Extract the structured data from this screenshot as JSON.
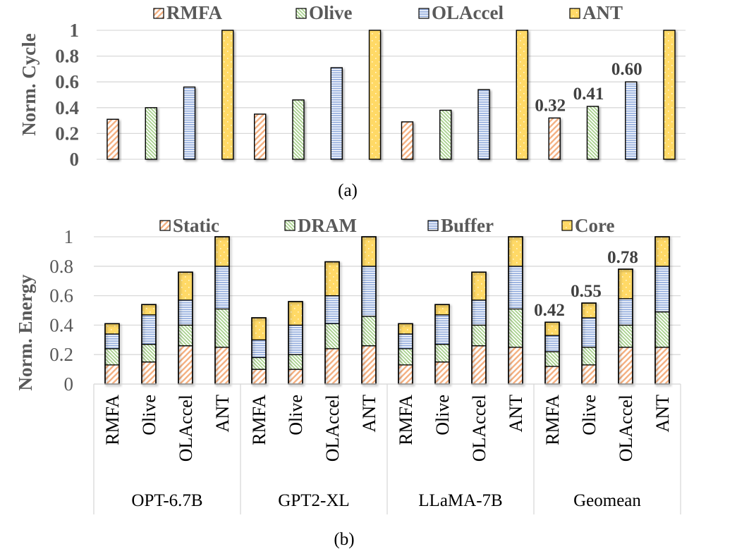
{
  "chart_data": [
    {
      "type": "bar",
      "panel_label": "(a)",
      "ylabel": "Norm. Cycle",
      "xlabel": "",
      "ylim": [
        0,
        1
      ],
      "yticks": [
        "0",
        "0.2",
        "0.4",
        "0.6",
        "0.8",
        "1"
      ],
      "grid": true,
      "legend": {
        "placement": "top",
        "entries": [
          "RMFA",
          "Olive",
          "OLAccel",
          "ANT"
        ]
      },
      "groups": [
        "OPT-6.7B",
        "GPT2-XL",
        "LLaMA-7B",
        "Geomean"
      ],
      "series": [
        {
          "name": "RMFA",
          "values": [
            0.31,
            0.35,
            0.29,
            0.32
          ]
        },
        {
          "name": "Olive",
          "values": [
            0.4,
            0.46,
            0.38,
            0.41
          ]
        },
        {
          "name": "OLAccel",
          "values": [
            0.56,
            0.71,
            0.54,
            0.6
          ]
        },
        {
          "name": "ANT",
          "values": [
            1.0,
            1.0,
            1.0,
            1.0
          ]
        }
      ],
      "annotations": [
        {
          "group": "Geomean",
          "series": "RMFA",
          "text": "0.32"
        },
        {
          "group": "Geomean",
          "series": "Olive",
          "text": "0.41"
        },
        {
          "group": "Geomean",
          "series": "OLAccel",
          "text": "0.60"
        }
      ]
    },
    {
      "type": "bar",
      "stacked": true,
      "panel_label": "(b)",
      "ylabel": "Norm. Energy",
      "xlabel": "",
      "ylim": [
        0,
        1
      ],
      "yticks": [
        "0",
        "0.2",
        "0.4",
        "0.6",
        "0.8",
        "1"
      ],
      "grid": true,
      "legend": {
        "placement": "top",
        "entries": [
          "Static",
          "DRAM",
          "Buffer",
          "Core"
        ]
      },
      "groups": [
        "OPT-6.7B",
        "GPT2-XL",
        "LLaMA-7B",
        "Geomean"
      ],
      "categories": [
        "RMFA",
        "Olive",
        "OLAccel",
        "ANT"
      ],
      "series": [
        {
          "name": "Static",
          "values": [
            [
              0.13,
              0.15,
              0.26,
              0.25
            ],
            [
              0.1,
              0.1,
              0.24,
              0.26
            ],
            [
              0.13,
              0.15,
              0.26,
              0.25
            ],
            [
              0.12,
              0.13,
              0.25,
              0.25
            ]
          ]
        },
        {
          "name": "DRAM",
          "values": [
            [
              0.11,
              0.12,
              0.14,
              0.26
            ],
            [
              0.08,
              0.1,
              0.17,
              0.2
            ],
            [
              0.11,
              0.12,
              0.14,
              0.26
            ],
            [
              0.1,
              0.12,
              0.15,
              0.24
            ]
          ]
        },
        {
          "name": "Buffer",
          "values": [
            [
              0.1,
              0.2,
              0.17,
              0.29
            ],
            [
              0.12,
              0.2,
              0.19,
              0.34
            ],
            [
              0.1,
              0.2,
              0.17,
              0.29
            ],
            [
              0.11,
              0.2,
              0.18,
              0.31
            ]
          ]
        },
        {
          "name": "Core",
          "values": [
            [
              0.07,
              0.07,
              0.19,
              0.2
            ],
            [
              0.15,
              0.16,
              0.23,
              0.2
            ],
            [
              0.07,
              0.07,
              0.19,
              0.2
            ],
            [
              0.09,
              0.1,
              0.2,
              0.2
            ]
          ]
        }
      ],
      "totals": [
        [
          0.41,
          0.54,
          0.76,
          1.0
        ],
        [
          0.45,
          0.56,
          0.83,
          1.0
        ],
        [
          0.41,
          0.54,
          0.76,
          1.0
        ],
        [
          0.42,
          0.55,
          0.78,
          1.0
        ]
      ],
      "annotations": [
        {
          "group": "Geomean",
          "category": "RMFA",
          "text": "0.42"
        },
        {
          "group": "Geomean",
          "category": "Olive",
          "text": "0.55"
        },
        {
          "group": "Geomean",
          "category": "OLAccel",
          "text": "0.78"
        }
      ]
    }
  ],
  "colors": {
    "RMFA": "#f4b183",
    "Olive": "#a9d18e",
    "OLAccel": "#8faadc",
    "ANT": "#ffd966",
    "Static": "#f4b183",
    "DRAM": "#a9d18e",
    "Buffer": "#8faadc",
    "Core": "#ffd966",
    "text": "#595959",
    "grid": "#d9d9d9"
  }
}
